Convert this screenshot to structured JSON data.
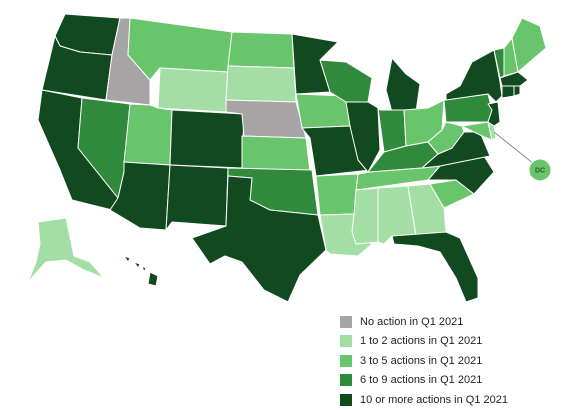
{
  "colors": {
    "none": "#a6a4a4",
    "c1": "#a3dea5",
    "c2": "#69c56c",
    "c3": "#2f8a3b",
    "c4": "#124a1f"
  },
  "legend": [
    {
      "cat": "none",
      "label": "No action in Q1 2021"
    },
    {
      "cat": "c1",
      "label": "1 to 2 actions in Q1 2021"
    },
    {
      "cat": "c2",
      "label": "3 to 5 actions in Q1 2021"
    },
    {
      "cat": "c3",
      "label": "6 to 9 actions in Q1 2021"
    },
    {
      "cat": "c4",
      "label": "10 or more actions in Q1 2021"
    }
  ],
  "dc_label": "DC",
  "states": {
    "WA": "c4",
    "OR": "c4",
    "CA": "c4",
    "ID": "none",
    "NV": "c3",
    "AZ": "c4",
    "UT": "c2",
    "MT": "c2",
    "WY": "c1",
    "CO": "c4",
    "NM": "c4",
    "ND": "c2",
    "SD": "c1",
    "NE": "none",
    "KS": "c2",
    "OK": "c3",
    "TX": "c4",
    "MN": "c4",
    "IA": "c2",
    "MO": "c4",
    "AR": "c2",
    "LA": "c1",
    "WI": "c3",
    "IL": "c4",
    "MI": "c4",
    "IN": "c3",
    "OH": "c2",
    "KY": "c3",
    "TN": "c2",
    "MS": "c1",
    "AL": "c1",
    "GA": "c1",
    "FL": "c4",
    "SC": "c2",
    "NC": "c4",
    "VA": "c4",
    "WV": "c2",
    "PA": "c3",
    "NY": "c4",
    "VT": "c3",
    "NH": "c2",
    "ME": "c2",
    "MA": "c4",
    "CT": "c4",
    "RI": "c4",
    "NJ": "c4",
    "DE": "c1",
    "MD": "c2",
    "DC": "c2",
    "AK": "c1",
    "HI": "c4"
  }
}
